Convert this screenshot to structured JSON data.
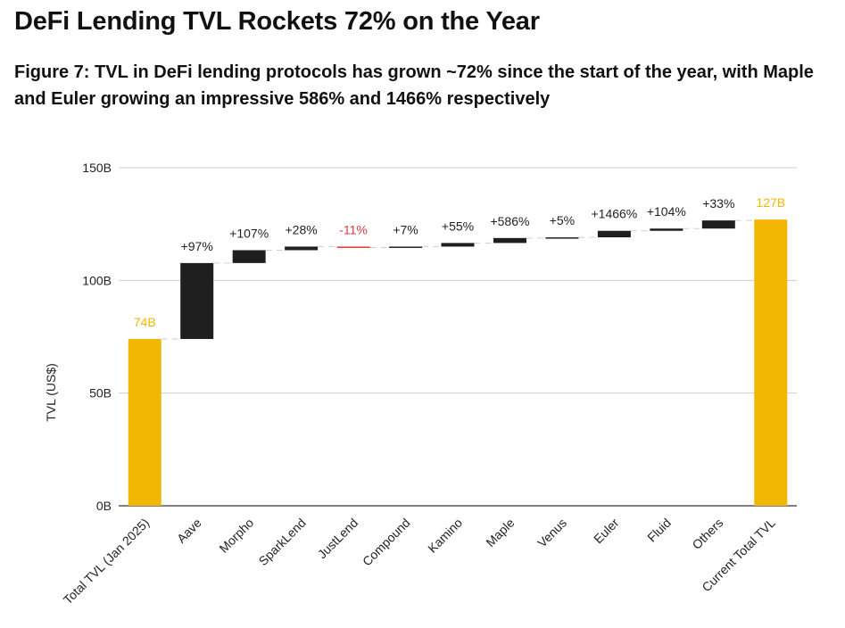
{
  "title": "DeFi Lending TVL Rockets 72% on the Year",
  "subtitle": "Figure 7: TVL in DeFi lending protocols has grown ~72% since the start of the year, with Maple and Euler growing an impressive 586% and 1466% respectively",
  "colors": {
    "total": "#f2b705",
    "step": "#1f1f1f",
    "negative": "#d93a3a",
    "grid": "#cfcfcf",
    "connector": "#cfcfcf"
  },
  "chart_data": {
    "type": "bar",
    "subtype": "waterfall",
    "ylabel": "TVL (US$)",
    "ylim": [
      0,
      150
    ],
    "yticks": [
      0,
      50,
      100,
      150
    ],
    "ytick_labels": [
      "0B",
      "50B",
      "100B",
      "150B"
    ],
    "grid": true,
    "categories": [
      "Total TVL (Jan 2025)",
      "Aave",
      "Morpho",
      "SparkLend",
      "JustLend",
      "Compound",
      "Kamino",
      "Maple",
      "Venus",
      "Euler",
      "Fluid",
      "Others",
      "Current Total TVL"
    ],
    "bars": [
      {
        "category": "Total TVL (Jan 2025)",
        "kind": "total",
        "start": 0,
        "end": 74,
        "label": "74B"
      },
      {
        "category": "Aave",
        "kind": "increase",
        "start": 74,
        "end": 107.7,
        "label": "+97%"
      },
      {
        "category": "Morpho",
        "kind": "increase",
        "start": 107.7,
        "end": 113.4,
        "label": "+107%"
      },
      {
        "category": "SparkLend",
        "kind": "increase",
        "start": 113.4,
        "end": 115,
        "label": "+28%"
      },
      {
        "category": "JustLend",
        "kind": "decrease",
        "start": 115,
        "end": 114.6,
        "label": "-11%"
      },
      {
        "category": "Compound",
        "kind": "increase",
        "start": 114.6,
        "end": 115,
        "label": "+7%"
      },
      {
        "category": "Kamino",
        "kind": "increase",
        "start": 115,
        "end": 116.6,
        "label": "+55%"
      },
      {
        "category": "Maple",
        "kind": "increase",
        "start": 116.6,
        "end": 118.8,
        "label": "+586%"
      },
      {
        "category": "Venus",
        "kind": "increase",
        "start": 118.8,
        "end": 119.1,
        "label": "+5%"
      },
      {
        "category": "Euler",
        "kind": "increase",
        "start": 119.1,
        "end": 122,
        "label": "+1466%"
      },
      {
        "category": "Fluid",
        "kind": "increase",
        "start": 122,
        "end": 123,
        "label": "+104%"
      },
      {
        "category": "Others",
        "kind": "increase",
        "start": 123,
        "end": 126.6,
        "label": "+33%"
      },
      {
        "category": "Current Total TVL",
        "kind": "total",
        "start": 0,
        "end": 127,
        "label": "127B"
      }
    ]
  }
}
